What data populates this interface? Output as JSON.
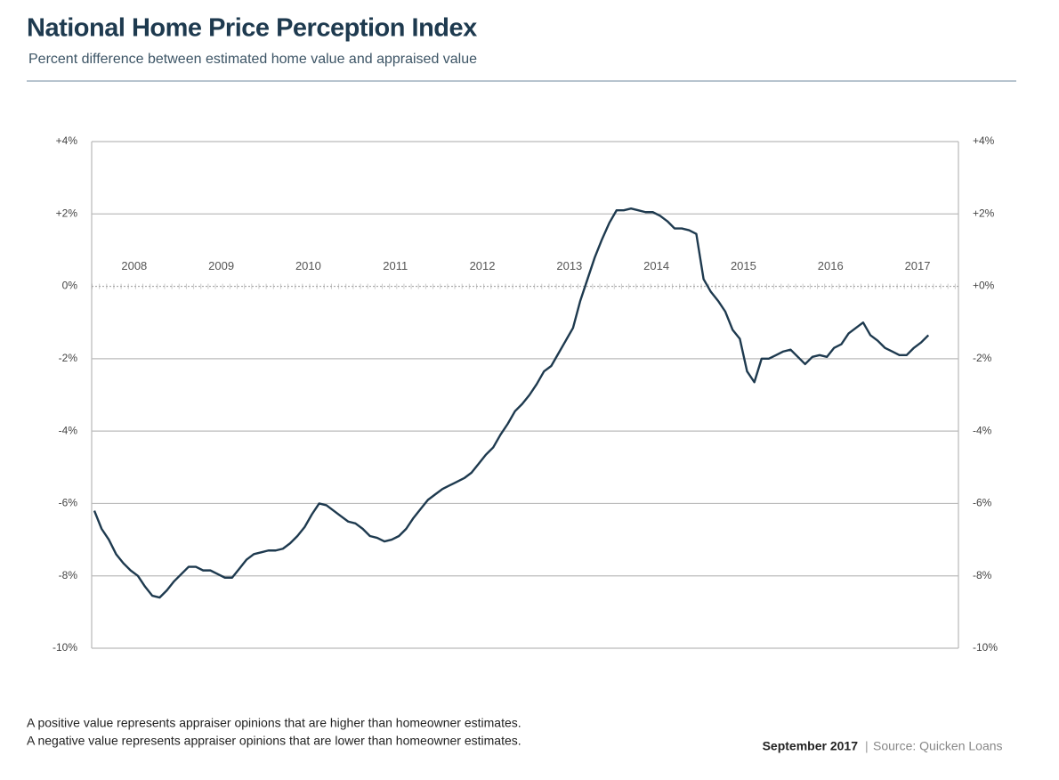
{
  "chart_data": {
    "type": "line",
    "title": "National Home Price Perception Index",
    "subtitle": "Percent difference between estimated home value and appraised value",
    "notes": [
      "A positive value represents appraiser opinions that are higher than homeowner estimates.",
      "A negative value represents appraiser opinions that are lower than homeowner estimates."
    ],
    "date": "September 2017",
    "source": "Source: Quicken Loans",
    "categories": [
      null,
      null,
      null,
      null,
      null,
      "2008",
      null,
      null,
      null,
      null,
      null,
      null,
      null,
      null,
      null,
      null,
      null,
      "2009",
      null,
      null,
      null,
      null,
      null,
      null,
      null,
      null,
      null,
      null,
      null,
      "2010",
      null,
      null,
      null,
      null,
      null,
      null,
      null,
      null,
      null,
      null,
      null,
      "2011",
      null,
      null,
      null,
      null,
      null,
      null,
      null,
      null,
      null,
      null,
      null,
      "2012",
      null,
      null,
      null,
      null,
      null,
      null,
      null,
      null,
      null,
      null,
      null,
      "2013",
      null,
      null,
      null,
      null,
      null,
      null,
      null,
      null,
      null,
      null,
      null,
      "2014",
      null,
      null,
      null,
      null,
      null,
      null,
      null,
      null,
      null,
      null,
      null,
      "2015",
      null,
      null,
      null,
      null,
      null,
      null,
      null,
      null,
      null,
      null,
      null,
      "2016",
      null,
      null,
      null,
      null,
      null,
      null,
      null,
      null,
      null,
      null,
      null,
      "2017",
      null,
      null
    ],
    "series": [
      {
        "name": "National Home Price Perception Index",
        "color": "#1e3a4f",
        "values": [
          -6.2,
          -6.7,
          -7.0,
          -7.4,
          -7.65,
          -7.85,
          -8.0,
          -8.3,
          -8.55,
          -8.6,
          -8.4,
          -8.15,
          -7.95,
          -7.75,
          -7.75,
          -7.85,
          -7.85,
          -7.95,
          -8.05,
          -8.05,
          -7.8,
          -7.55,
          -7.4,
          -7.35,
          -7.3,
          -7.3,
          -7.25,
          -7.1,
          -6.9,
          -6.65,
          -6.3,
          -6.0,
          -6.05,
          -6.2,
          -6.35,
          -6.5,
          -6.55,
          -6.7,
          -6.9,
          -6.95,
          -7.05,
          -7.0,
          -6.9,
          -6.7,
          -6.4,
          -6.15,
          -5.9,
          -5.75,
          -5.6,
          -5.5,
          -5.4,
          -5.3,
          -5.15,
          -4.9,
          -4.65,
          -4.45,
          -4.1,
          -3.8,
          -3.45,
          -3.25,
          -3.0,
          -2.7,
          -2.35,
          -2.2,
          -1.85,
          -1.5,
          -1.15,
          -0.4,
          0.2,
          0.8,
          1.3,
          1.75,
          2.1,
          2.1,
          2.15,
          2.1,
          2.05,
          2.05,
          1.95,
          1.8,
          1.6,
          1.6,
          1.55,
          1.45,
          0.2,
          -0.15,
          -0.4,
          -0.7,
          -1.2,
          -1.45,
          -2.35,
          -2.65,
          -2.0,
          -2.0,
          -1.9,
          -1.8,
          -1.75,
          -1.95,
          -2.15,
          -1.95,
          -1.9,
          -1.95,
          -1.7,
          -1.6,
          -1.3,
          -1.15,
          -1.0,
          -1.35,
          -1.5,
          -1.7,
          -1.8,
          -1.9,
          -1.9,
          -1.7,
          -1.55,
          -1.35
        ]
      }
    ],
    "ylim": [
      -10,
      4
    ],
    "yticks": [
      {
        "value": 4,
        "label": "+4%"
      },
      {
        "value": 2,
        "label": "+2%"
      },
      {
        "value": 0,
        "label": "0%"
      },
      {
        "value": -2,
        "label": "-2%"
      },
      {
        "value": -4,
        "label": "-4%"
      },
      {
        "value": -6,
        "label": "-6%"
      },
      {
        "value": -8,
        "label": "-8%"
      },
      {
        "value": -10,
        "label": "-10%"
      }
    ],
    "y2lim": [
      -10,
      4
    ],
    "y2ticks": [
      {
        "value": 4,
        "label": "+4%"
      },
      {
        "value": 2,
        "label": "+2%"
      },
      {
        "value": 0,
        "label": "+0%"
      },
      {
        "value": -2,
        "label": "-2%"
      },
      {
        "value": -4,
        "label": "-4%"
      },
      {
        "value": -6,
        "label": "-6%"
      },
      {
        "value": -8,
        "label": "-8%"
      },
      {
        "value": -10,
        "label": "-10%"
      }
    ],
    "grid": true
  }
}
